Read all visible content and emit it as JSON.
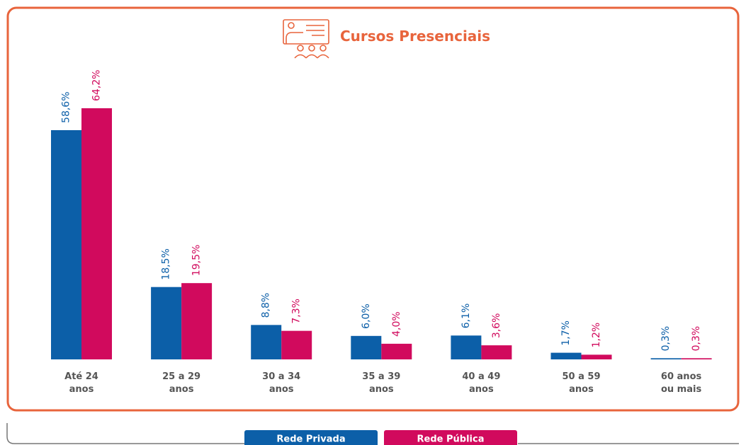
{
  "chart_data": {
    "type": "bar",
    "title": "Cursos Presenciais",
    "categories": [
      "Até 24 anos",
      "25 a 29 anos",
      "30 a 34 anos",
      "35 a 39 anos",
      "40 a 49 anos",
      "50 a 59 anos",
      "60 anos ou mais"
    ],
    "series": [
      {
        "name": "Rede Privada",
        "color": "#0c5fa8",
        "values": [
          58.6,
          18.5,
          8.8,
          6.0,
          6.1,
          1.7,
          0.3
        ],
        "value_labels": [
          "58,6%",
          "18,5%",
          "8,8%",
          "6,0%",
          "6,1%",
          "1,7%",
          "0,3%"
        ]
      },
      {
        "name": "Rede Pública",
        "color": "#d10a5d",
        "values": [
          64.2,
          19.5,
          7.3,
          4.0,
          3.6,
          1.2,
          0.3
        ],
        "value_labels": [
          "64,2%",
          "19,5%",
          "7,3%",
          "4,0%",
          "3,6%",
          "1,2%",
          "0,3%"
        ]
      }
    ],
    "legend": "bottom"
  }
}
